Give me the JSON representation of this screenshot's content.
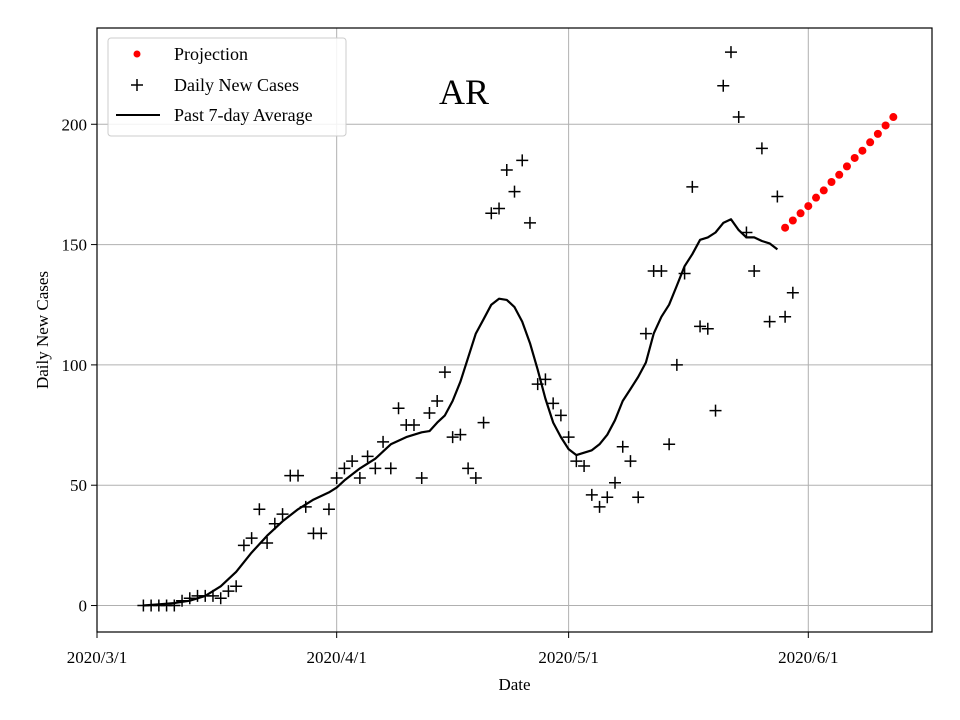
{
  "chart_data": {
    "type": "scatter",
    "title": "AR",
    "xlabel": "Date",
    "ylabel": "Daily New Cases",
    "x_origin_date": "2020-03-01",
    "xlim_days": [
      0,
      108
    ],
    "ylim": [
      -11,
      240
    ],
    "grid": true,
    "legend_position": "top-left",
    "xticks": [
      {
        "day": 0,
        "label": "2020/3/1"
      },
      {
        "day": 31,
        "label": "2020/4/1"
      },
      {
        "day": 61,
        "label": "2020/5/1"
      },
      {
        "day": 92,
        "label": "2020/6/1"
      }
    ],
    "yticks": [
      {
        "value": 0,
        "label": "0"
      },
      {
        "value": 50,
        "label": "50"
      },
      {
        "value": 100,
        "label": "100"
      },
      {
        "value": 150,
        "label": "150"
      },
      {
        "value": 200,
        "label": "200"
      }
    ],
    "series": [
      {
        "name": "Projection",
        "kind": "dots",
        "color": "#ff0000",
        "points": [
          [
            89,
            157
          ],
          [
            90,
            160
          ],
          [
            91,
            163
          ],
          [
            92,
            166
          ],
          [
            93,
            169.5
          ],
          [
            94,
            172.5
          ],
          [
            95,
            176
          ],
          [
            96,
            179
          ],
          [
            97,
            182.5
          ],
          [
            98,
            186
          ],
          [
            99,
            189
          ],
          [
            100,
            192.5
          ],
          [
            101,
            196
          ],
          [
            102,
            199.5
          ],
          [
            103,
            203
          ]
        ]
      },
      {
        "name": "Daily New Cases",
        "kind": "plus",
        "color": "#000000",
        "points": [
          [
            6,
            0
          ],
          [
            7,
            0
          ],
          [
            8,
            0
          ],
          [
            9,
            0
          ],
          [
            10,
            0
          ],
          [
            11,
            2
          ],
          [
            12,
            3
          ],
          [
            13,
            4
          ],
          [
            14,
            4
          ],
          [
            15,
            4
          ],
          [
            16,
            3
          ],
          [
            17,
            6
          ],
          [
            18,
            8
          ],
          [
            19,
            25
          ],
          [
            20,
            28
          ],
          [
            21,
            40
          ],
          [
            22,
            26
          ],
          [
            23,
            34
          ],
          [
            24,
            38
          ],
          [
            25,
            54
          ],
          [
            26,
            54
          ],
          [
            27,
            41
          ],
          [
            28,
            30
          ],
          [
            29,
            30
          ],
          [
            30,
            40
          ],
          [
            31,
            53
          ],
          [
            32,
            57
          ],
          [
            33,
            60
          ],
          [
            34,
            53
          ],
          [
            35,
            62
          ],
          [
            36,
            57
          ],
          [
            37,
            68
          ],
          [
            38,
            57
          ],
          [
            39,
            82
          ],
          [
            40,
            75
          ],
          [
            41,
            75
          ],
          [
            42,
            53
          ],
          [
            43,
            80
          ],
          [
            44,
            85
          ],
          [
            45,
            97
          ],
          [
            46,
            70
          ],
          [
            47,
            71
          ],
          [
            48,
            57
          ],
          [
            49,
            53
          ],
          [
            50,
            76
          ],
          [
            51,
            163
          ],
          [
            52,
            165
          ],
          [
            53,
            181
          ],
          [
            54,
            172
          ],
          [
            55,
            185
          ],
          [
            56,
            159
          ],
          [
            57,
            92
          ],
          [
            58,
            94
          ],
          [
            59,
            84
          ],
          [
            60,
            79
          ],
          [
            61,
            70
          ],
          [
            62,
            60
          ],
          [
            63,
            58
          ],
          [
            64,
            46
          ],
          [
            65,
            41
          ],
          [
            66,
            45
          ],
          [
            67,
            51
          ],
          [
            68,
            66
          ],
          [
            69,
            60
          ],
          [
            70,
            45
          ],
          [
            71,
            113
          ],
          [
            72,
            139
          ],
          [
            73,
            139
          ],
          [
            74,
            67
          ],
          [
            75,
            100
          ],
          [
            76,
            138
          ],
          [
            77,
            174
          ],
          [
            78,
            116
          ],
          [
            79,
            115
          ],
          [
            80,
            81
          ],
          [
            81,
            216
          ],
          [
            82,
            230
          ],
          [
            83,
            203
          ],
          [
            84,
            155
          ],
          [
            85,
            139
          ],
          [
            86,
            190
          ],
          [
            87,
            118
          ],
          [
            88,
            170
          ],
          [
            89,
            120
          ],
          [
            90,
            130
          ]
        ]
      },
      {
        "name": "Past 7-day Average",
        "kind": "line",
        "color": "#000000",
        "points": [
          [
            6,
            0
          ],
          [
            8,
            0.5
          ],
          [
            10,
            1
          ],
          [
            12,
            2
          ],
          [
            14,
            4
          ],
          [
            16,
            8
          ],
          [
            18,
            14
          ],
          [
            20,
            22
          ],
          [
            22,
            29
          ],
          [
            24,
            35
          ],
          [
            26,
            40
          ],
          [
            28,
            44
          ],
          [
            30,
            47
          ],
          [
            31,
            49
          ],
          [
            32,
            52
          ],
          [
            34,
            57
          ],
          [
            36,
            61
          ],
          [
            38,
            67
          ],
          [
            40,
            70
          ],
          [
            42,
            72
          ],
          [
            43,
            72.5
          ],
          [
            44,
            76
          ],
          [
            45,
            79
          ],
          [
            46,
            85
          ],
          [
            47,
            93
          ],
          [
            48,
            103
          ],
          [
            49,
            113
          ],
          [
            50,
            119
          ],
          [
            51,
            125
          ],
          [
            52,
            127.5
          ],
          [
            53,
            127
          ],
          [
            54,
            124
          ],
          [
            55,
            118
          ],
          [
            56,
            109
          ],
          [
            57,
            98
          ],
          [
            58,
            86
          ],
          [
            59,
            76
          ],
          [
            60,
            70
          ],
          [
            61,
            65
          ],
          [
            62,
            62.5
          ],
          [
            63,
            63.5
          ],
          [
            64,
            64.5
          ],
          [
            65,
            67
          ],
          [
            66,
            71
          ],
          [
            67,
            77
          ],
          [
            68,
            85
          ],
          [
            69,
            90
          ],
          [
            70,
            95
          ],
          [
            71,
            101
          ],
          [
            72,
            113
          ],
          [
            73,
            120
          ],
          [
            74,
            125
          ],
          [
            75,
            133
          ],
          [
            76,
            141
          ],
          [
            77,
            146
          ],
          [
            78,
            152
          ],
          [
            79,
            153
          ],
          [
            80,
            155
          ],
          [
            81,
            159
          ],
          [
            82,
            160.5
          ],
          [
            83,
            156
          ],
          [
            84,
            153
          ],
          [
            85,
            153
          ],
          [
            86,
            151.5
          ],
          [
            87,
            150.5
          ],
          [
            88,
            148
          ]
        ]
      }
    ]
  }
}
